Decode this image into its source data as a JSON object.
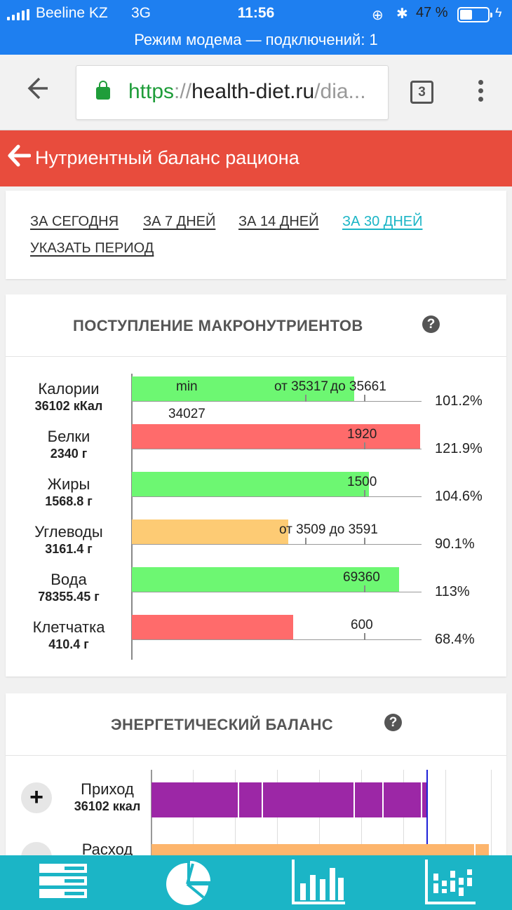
{
  "status": {
    "carrier": "Beeline KZ",
    "network": "3G",
    "time": "11:56",
    "battery": "47 %"
  },
  "hotspot": "Режим модема — подключений: 1",
  "browser": {
    "url_proto": "https",
    "url_sep": "://",
    "url_host": "health-diet.ru",
    "url_path": "/dia...",
    "tab_count": "3"
  },
  "header": {
    "title": "Нутриентный баланс рациона"
  },
  "periods": [
    {
      "label": "ЗА СЕГОДНЯ",
      "active": false
    },
    {
      "label": "ЗА 7 ДНЕЙ",
      "active": false
    },
    {
      "label": "ЗА 14 ДНЕЙ",
      "active": false
    },
    {
      "label": "ЗА 30 ДНЕЙ",
      "active": true
    },
    {
      "label": "УКАЗАТЬ ПЕРИОД",
      "active": false
    }
  ],
  "macro": {
    "title": "ПОСТУПЛЕНИЕ МАКРОНУТРИЕНТОВ",
    "help": "?",
    "rows": [
      {
        "name": "Калории",
        "value": "36102 кКал",
        "percent": "101.2%",
        "fill": 0.754,
        "color": "#6df772",
        "labels": [
          "min",
          "от 35317",
          "до 35661",
          "34027"
        ]
      },
      {
        "name": "Белки",
        "value": "2340 г",
        "percent": "121.9%",
        "fill": 0.978,
        "color": "#ff6b6b",
        "labels": [
          "1920"
        ]
      },
      {
        "name": "Жиры",
        "value": "1568.8 г",
        "percent": "104.6%",
        "fill": 0.804,
        "color": "#6df772",
        "labels": [
          "1500"
        ]
      },
      {
        "name": "Углеводы",
        "value": "3161.4 г",
        "percent": "90.1%",
        "fill": 0.532,
        "color": "#fdcb74",
        "labels": [
          "от 3509 до 3591"
        ]
      },
      {
        "name": "Вода",
        "value": "78355.45 г",
        "percent": "113%",
        "fill": 0.906,
        "color": "#6df772",
        "labels": [
          "69360"
        ]
      },
      {
        "name": "Клетчатка",
        "value": "410.4 г",
        "percent": "68.4%",
        "fill": 0.547,
        "color": "#ff6b6b",
        "labels": [
          "600"
        ]
      }
    ]
  },
  "energy": {
    "title": "ЭНЕРГЕТИЧЕСКИЙ БАЛАНС",
    "help": "?",
    "rows": [
      {
        "name": "Приход",
        "value": "36102 ккал",
        "color": "#9c27a6"
      },
      {
        "name": "Расход",
        "value": "",
        "color": "#fdb56c"
      }
    ]
  },
  "nav": [
    {
      "icon": "table-icon"
    },
    {
      "icon": "pie-chart-icon"
    },
    {
      "icon": "bar-chart-icon"
    },
    {
      "icon": "range-chart-icon"
    }
  ]
}
